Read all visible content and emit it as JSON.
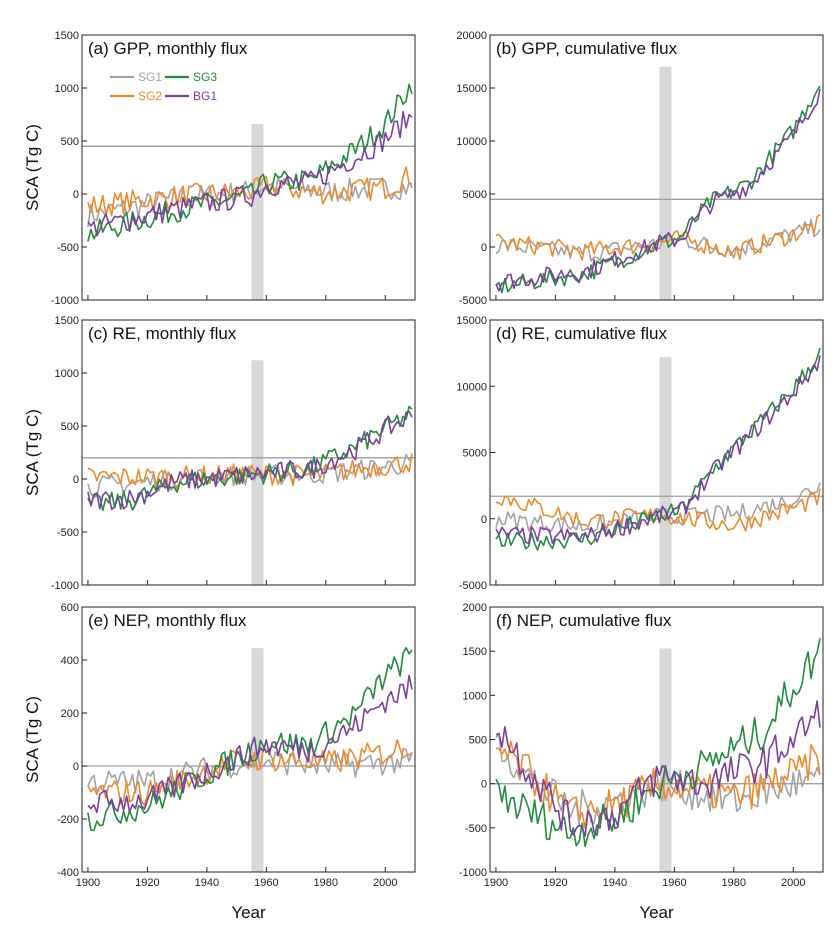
{
  "figure": {
    "xlabel": "Year",
    "ylabel": "SCA (Tg C)",
    "legend": [
      {
        "name": "SG1",
        "color": "#a3a3a3"
      },
      {
        "name": "SG2",
        "color": "#ee8a2c"
      },
      {
        "name": "SG3",
        "color": "#238b3c"
      },
      {
        "name": "BG1",
        "color": "#7b3f9e"
      }
    ],
    "colors": {
      "SG1": "#a3a3a3",
      "SG2": "#ee8a2c",
      "SG3": "#238b3c",
      "BG1": "#7b3f9e",
      "shade": "#d8d8d8",
      "refline": "#9e9e9e"
    }
  },
  "chart_data": [
    {
      "type": "line",
      "id": "a",
      "title": "(a) GPP, monthly flux",
      "xlim": [
        1898,
        2010
      ],
      "ylim": [
        -1000,
        1500
      ],
      "xticks": [
        "1900",
        "1920",
        "1940",
        "1960",
        "1980",
        "2000"
      ],
      "yticks": [
        "-1000",
        "-500",
        "0",
        "500",
        "1000",
        "1500"
      ],
      "hline": 450,
      "shade": {
        "x": [
          1955,
          1959
        ],
        "y": [
          -1000,
          660
        ]
      },
      "anchors": {
        "SG1": [
          [
            1900,
            -200
          ],
          [
            1930,
            -40
          ],
          [
            1955,
            30
          ],
          [
            1960,
            80
          ],
          [
            1980,
            20
          ],
          [
            2000,
            60
          ],
          [
            2009,
            60
          ]
        ],
        "SG2": [
          [
            1900,
            -120
          ],
          [
            1930,
            -20
          ],
          [
            1955,
            20
          ],
          [
            1960,
            70
          ],
          [
            1980,
            10
          ],
          [
            2000,
            60
          ],
          [
            2009,
            180
          ]
        ],
        "SG3": [
          [
            1900,
            -380
          ],
          [
            1930,
            -150
          ],
          [
            1955,
            -10
          ],
          [
            1960,
            100
          ],
          [
            1975,
            130
          ],
          [
            1990,
            420
          ],
          [
            2000,
            660
          ],
          [
            2009,
            1050
          ]
        ],
        "BG1": [
          [
            1900,
            -330
          ],
          [
            1930,
            -140
          ],
          [
            1955,
            -10
          ],
          [
            1960,
            90
          ],
          [
            1975,
            110
          ],
          [
            1990,
            350
          ],
          [
            2000,
            520
          ],
          [
            2009,
            740
          ]
        ]
      }
    },
    {
      "type": "line",
      "id": "b",
      "title": "(b) GPP, cumulative flux",
      "xlim": [
        1898,
        2010
      ],
      "ylim": [
        -5000,
        20000
      ],
      "xticks": [
        "1900",
        "1920",
        "1940",
        "1960",
        "1980",
        "2000"
      ],
      "yticks": [
        "-5000",
        "0",
        "5000",
        "10000",
        "15000",
        "20000"
      ],
      "hline": 4500,
      "shade": {
        "x": [
          1955,
          1959
        ],
        "y": [
          -5000,
          17000
        ]
      },
      "anchors": {
        "SG1": [
          [
            1900,
            200
          ],
          [
            1930,
            -600
          ],
          [
            1955,
            300
          ],
          [
            1962,
            700
          ],
          [
            1980,
            -300
          ],
          [
            2000,
            1200
          ],
          [
            2009,
            2000
          ]
        ],
        "SG2": [
          [
            1900,
            500
          ],
          [
            1930,
            -400
          ],
          [
            1955,
            400
          ],
          [
            1962,
            800
          ],
          [
            1980,
            -500
          ],
          [
            2000,
            1200
          ],
          [
            2009,
            2200
          ]
        ],
        "SG3": [
          [
            1900,
            -3800
          ],
          [
            1930,
            -2500
          ],
          [
            1955,
            300
          ],
          [
            1962,
            900
          ],
          [
            1972,
            4200
          ],
          [
            1985,
            6000
          ],
          [
            2000,
            11000
          ],
          [
            2009,
            15500
          ]
        ],
        "BG1": [
          [
            1900,
            -3300
          ],
          [
            1930,
            -2300
          ],
          [
            1955,
            400
          ],
          [
            1962,
            800
          ],
          [
            1972,
            4000
          ],
          [
            1985,
            5800
          ],
          [
            2000,
            10500
          ],
          [
            2009,
            14800
          ]
        ]
      }
    },
    {
      "type": "line",
      "id": "c",
      "title": "(c) RE, monthly flux",
      "xlim": [
        1898,
        2010
      ],
      "ylim": [
        -1000,
        1500
      ],
      "xticks": [
        "1900",
        "1920",
        "1940",
        "1960",
        "1980",
        "2000"
      ],
      "yticks": [
        "-1000",
        "-500",
        "0",
        "500",
        "1000",
        "1500"
      ],
      "hline": 200,
      "shade": {
        "x": [
          1955,
          1959
        ],
        "y": [
          -1000,
          1120
        ]
      },
      "anchors": {
        "SG1": [
          [
            1900,
            -80
          ],
          [
            1930,
            0
          ],
          [
            1955,
            40
          ],
          [
            1975,
            40
          ],
          [
            1990,
            80
          ],
          [
            2009,
            150
          ]
        ],
        "SG2": [
          [
            1900,
            20
          ],
          [
            1930,
            20
          ],
          [
            1955,
            50
          ],
          [
            1975,
            30
          ],
          [
            1990,
            90
          ],
          [
            2009,
            160
          ]
        ],
        "SG3": [
          [
            1900,
            -250
          ],
          [
            1915,
            -200
          ],
          [
            1930,
            -30
          ],
          [
            1955,
            40
          ],
          [
            1975,
            100
          ],
          [
            1990,
            300
          ],
          [
            2000,
            480
          ],
          [
            2009,
            620
          ]
        ],
        "BG1": [
          [
            1900,
            -200
          ],
          [
            1915,
            -180
          ],
          [
            1930,
            -20
          ],
          [
            1955,
            40
          ],
          [
            1975,
            90
          ],
          [
            1990,
            280
          ],
          [
            2000,
            460
          ],
          [
            2009,
            600
          ]
        ]
      }
    },
    {
      "type": "line",
      "id": "d",
      "title": "(d) RE, cumulative flux",
      "xlim": [
        1898,
        2010
      ],
      "ylim": [
        -5000,
        15000
      ],
      "xticks": [
        "1900",
        "1920",
        "1940",
        "1960",
        "1980",
        "2000"
      ],
      "yticks": [
        "-5000",
        "0",
        "5000",
        "10000",
        "15000"
      ],
      "hline": 1700,
      "shade": {
        "x": [
          1955,
          1959
        ],
        "y": [
          -5000,
          12200
        ]
      },
      "anchors": {
        "SG1": [
          [
            1900,
            0
          ],
          [
            1930,
            -600
          ],
          [
            1955,
            200
          ],
          [
            1980,
            300
          ],
          [
            2000,
            1500
          ],
          [
            2009,
            2500
          ]
        ],
        "SG2": [
          [
            1900,
            1800
          ],
          [
            1930,
            -200
          ],
          [
            1955,
            300
          ],
          [
            1980,
            -500
          ],
          [
            2000,
            800
          ],
          [
            2009,
            1600
          ]
        ],
        "SG3": [
          [
            1900,
            -1800
          ],
          [
            1930,
            -1500
          ],
          [
            1955,
            200
          ],
          [
            1962,
            600
          ],
          [
            1975,
            4200
          ],
          [
            1990,
            7500
          ],
          [
            2000,
            9800
          ],
          [
            2009,
            12500
          ]
        ],
        "BG1": [
          [
            1900,
            -1200
          ],
          [
            1930,
            -1400
          ],
          [
            1955,
            200
          ],
          [
            1962,
            500
          ],
          [
            1975,
            4000
          ],
          [
            1990,
            7300
          ],
          [
            2000,
            9500
          ],
          [
            2009,
            12000
          ]
        ]
      }
    },
    {
      "type": "line",
      "id": "e",
      "title": "(e) NEP, monthly flux",
      "xlim": [
        1898,
        2010
      ],
      "ylim": [
        -400,
        600
      ],
      "xticks": [
        "1900",
        "1920",
        "1940",
        "1960",
        "1980",
        "2000"
      ],
      "yticks": [
        "-400",
        "-200",
        "0",
        "200",
        "400",
        "600"
      ],
      "hline": 0,
      "shade": {
        "x": [
          1955,
          1959
        ],
        "y": [
          -400,
          445
        ]
      },
      "anchors": {
        "SG1": [
          [
            1900,
            -60
          ],
          [
            1920,
            -60
          ],
          [
            1950,
            10
          ],
          [
            1960,
            20
          ],
          [
            1980,
            0
          ],
          [
            2009,
            20
          ]
        ],
        "SG2": [
          [
            1900,
            -100
          ],
          [
            1920,
            -100
          ],
          [
            1950,
            20
          ],
          [
            1960,
            30
          ],
          [
            1980,
            10
          ],
          [
            2000,
            50
          ],
          [
            2009,
            80
          ]
        ],
        "SG3": [
          [
            1900,
            -200
          ],
          [
            1920,
            -150
          ],
          [
            1950,
            30
          ],
          [
            1960,
            90
          ],
          [
            1975,
            80
          ],
          [
            1990,
            200
          ],
          [
            2000,
            340
          ],
          [
            2009,
            420
          ]
        ],
        "BG1": [
          [
            1900,
            -140
          ],
          [
            1920,
            -130
          ],
          [
            1950,
            30
          ],
          [
            1960,
            80
          ],
          [
            1975,
            60
          ],
          [
            1990,
            150
          ],
          [
            2000,
            250
          ],
          [
            2009,
            300
          ]
        ]
      }
    },
    {
      "type": "line",
      "id": "f",
      "title": "(f) NEP, cumulative flux",
      "xlim": [
        1898,
        2010
      ],
      "ylim": [
        -1000,
        2000
      ],
      "xticks": [
        "1900",
        "1920",
        "1940",
        "1960",
        "1980",
        "2000"
      ],
      "yticks": [
        "-1000",
        "-500",
        "0",
        "500",
        "1000",
        "1500",
        "2000"
      ],
      "hline": 0,
      "shade": {
        "x": [
          1955,
          1959
        ],
        "y": [
          -1000,
          1530
        ]
      },
      "anchors": {
        "SG1": [
          [
            1900,
            500
          ],
          [
            1910,
            100
          ],
          [
            1925,
            -300
          ],
          [
            1940,
            -200
          ],
          [
            1955,
            0
          ],
          [
            1980,
            -200
          ],
          [
            2000,
            0
          ],
          [
            2009,
            0
          ]
        ],
        "SG2": [
          [
            1900,
            400
          ],
          [
            1910,
            150
          ],
          [
            1925,
            -350
          ],
          [
            1940,
            -250
          ],
          [
            1955,
            0
          ],
          [
            1980,
            -150
          ],
          [
            2000,
            100
          ],
          [
            2009,
            300
          ]
        ],
        "SG3": [
          [
            1900,
            -100
          ],
          [
            1910,
            -300
          ],
          [
            1925,
            -550
          ],
          [
            1940,
            -400
          ],
          [
            1955,
            0
          ],
          [
            1970,
            200
          ],
          [
            1990,
            600
          ],
          [
            2000,
            1100
          ],
          [
            2009,
            1500
          ]
        ],
        "BG1": [
          [
            1900,
            700
          ],
          [
            1910,
            200
          ],
          [
            1925,
            -450
          ],
          [
            1940,
            -350
          ],
          [
            1955,
            100
          ],
          [
            1970,
            0
          ],
          [
            1990,
            250
          ],
          [
            2000,
            500
          ],
          [
            2009,
            800
          ]
        ]
      }
    }
  ]
}
